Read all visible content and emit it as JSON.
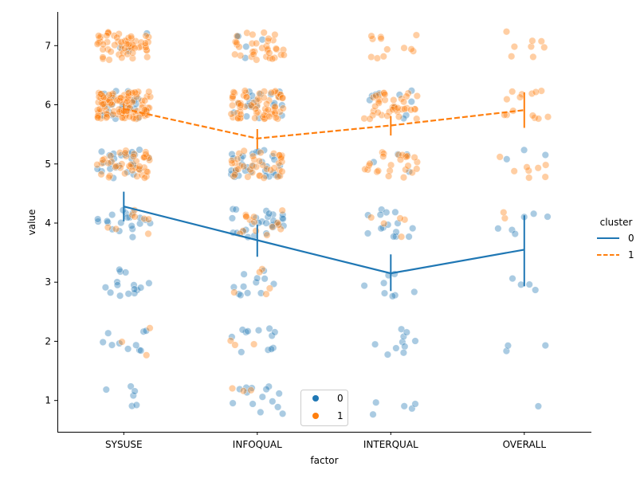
{
  "chart_data": {
    "type": "scatter",
    "subtype": "stripplot-with-pointplot",
    "title": "",
    "xlabel": "factor",
    "ylabel": "value",
    "categories": [
      "SYSUSE",
      "INFOQUAL",
      "INTERQUAL",
      "OVERALL"
    ],
    "yticks": [
      1,
      2,
      3,
      4,
      5,
      6,
      7
    ],
    "ylim": [
      0.47,
      7.57
    ],
    "jitter": 0.2,
    "points": [
      {
        "name": "0",
        "color": "#1f77b4",
        "counts": [
          {
            "1": 6,
            "2": 10,
            "3": 15,
            "4": 20,
            "5": 25,
            "6": 25,
            "7": 4
          },
          {
            "1": 14,
            "2": 12,
            "3": 12,
            "4": 28,
            "5": 30,
            "6": 20,
            "7": 5
          },
          {
            "1": 5,
            "2": 10,
            "3": 8,
            "4": 15,
            "5": 4,
            "6": 10,
            "7": 0
          },
          {
            "1": 1,
            "2": 3,
            "3": 4,
            "4": 6,
            "5": 3,
            "6": 0,
            "7": 0
          }
        ]
      },
      {
        "name": "1",
        "color": "#ff7f0e",
        "counts": [
          {
            "1": 0,
            "2": 3,
            "3": 0,
            "4": 8,
            "5": 45,
            "6": 110,
            "7": 60
          },
          {
            "1": 3,
            "2": 3,
            "3": 5,
            "4": 15,
            "5": 40,
            "6": 70,
            "7": 35
          },
          {
            "1": 0,
            "2": 0,
            "3": 0,
            "4": 5,
            "5": 25,
            "6": 40,
            "7": 12
          },
          {
            "1": 0,
            "2": 0,
            "3": 0,
            "4": 2,
            "5": 8,
            "6": 14,
            "7": 8
          }
        ]
      }
    ],
    "series": [
      {
        "name": "0",
        "color": "#1f77b4",
        "dashed": false,
        "values": [
          4.28,
          3.71,
          3.15,
          3.55
        ],
        "ci_low": [
          4.03,
          3.43,
          2.85,
          2.93
        ],
        "ci_high": [
          4.53,
          3.97,
          3.47,
          4.13
        ]
      },
      {
        "name": "1",
        "color": "#ff7f0e",
        "dashed": true,
        "values": [
          5.93,
          5.43,
          5.65,
          5.91
        ],
        "ci_low": [
          5.85,
          5.25,
          5.48,
          5.61
        ],
        "ci_high": [
          6.01,
          5.59,
          5.81,
          6.21
        ]
      }
    ],
    "hue_legend": {
      "location": "lower-center",
      "entries": [
        {
          "label": "0",
          "color": "#1f77b4"
        },
        {
          "label": "1",
          "color": "#ff7f0e"
        }
      ]
    },
    "cluster_legend": {
      "title": "cluster",
      "location": "right-outside",
      "entries": [
        {
          "label": "0",
          "color": "#1f77b4",
          "dashed": false
        },
        {
          "label": "1",
          "color": "#ff7f0e",
          "dashed": true
        }
      ]
    }
  }
}
